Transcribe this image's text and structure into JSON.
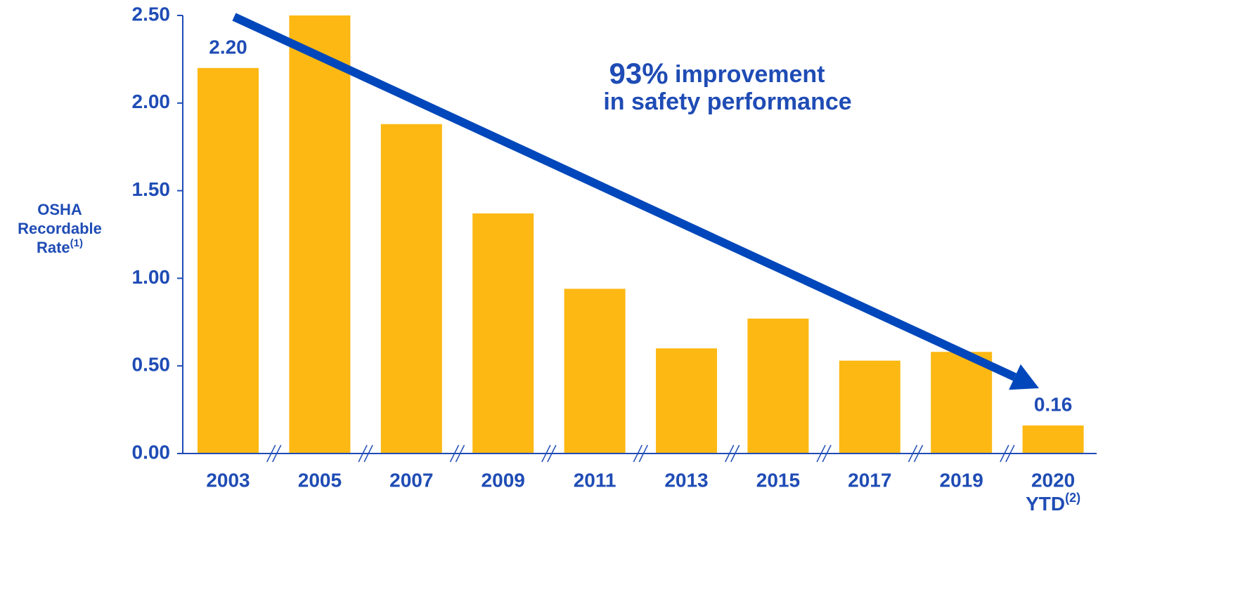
{
  "chart_data": {
    "type": "bar",
    "y_label": {
      "lines": [
        "OSHA",
        "Recordable",
        "Rate"
      ],
      "footnote": "(1)"
    },
    "annotation": {
      "highlight": "93%",
      "line1": "improvement",
      "line2": "in safety performance"
    },
    "categories": [
      "2003",
      "2005",
      "2007",
      "2009",
      "2011",
      "2013",
      "2015",
      "2017",
      "2019",
      "2020"
    ],
    "last_category_sublabel": {
      "text": "YTD",
      "footnote": "(2)"
    },
    "values": [
      2.2,
      2.5,
      1.88,
      1.37,
      0.94,
      0.6,
      0.77,
      0.53,
      0.58,
      0.16
    ],
    "value_labels": [
      "2.20",
      null,
      null,
      null,
      null,
      null,
      null,
      null,
      null,
      "0.16"
    ],
    "color": "#fdb813",
    "ylim": [
      0,
      2.5
    ],
    "yticks": [
      {
        "value": 0,
        "label": "0.00"
      },
      {
        "value": 0.5,
        "label": "0.50"
      },
      {
        "value": 1,
        "label": "1.00"
      },
      {
        "value": 1.5,
        "label": "1.50"
      },
      {
        "value": 2,
        "label": "2.00"
      },
      {
        "value": 2.5,
        "label": "2.50"
      }
    ],
    "grid": false
  }
}
